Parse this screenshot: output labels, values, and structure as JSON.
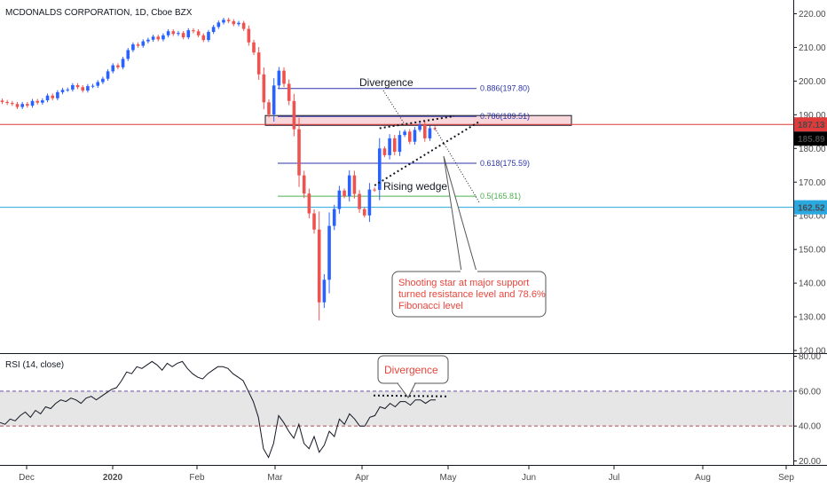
{
  "header": {
    "title": "MCDONALDS CORPORATION, 1D, Cboe BZX",
    "rsi_label": "RSI (14, close)"
  },
  "colors": {
    "up": "#2962ff",
    "down": "#ef5350",
    "resistance_line": "#e03a3a",
    "support_line": "#2aa8e0",
    "fib_line": "#2d35a8",
    "fib_05": "#4caf50",
    "zone_fill": "#f8d7da",
    "rsi_line": "#131722",
    "rsi_band": "#e6e6e6",
    "price_tag_red": "#e03a3a",
    "price_tag_black": "#000000",
    "price_tag_blue": "#2aa8e0"
  },
  "chart_data": [
    {
      "type": "candlestick",
      "title": "MCDONALDS CORPORATION, 1D, Cboe BZX",
      "xlabel": "",
      "ylabel": "",
      "ylim": [
        118,
        222
      ],
      "y_axis_side": "right",
      "grid": false,
      "x_tick_labels": [
        "Dec",
        "2020",
        "Feb",
        "Mar",
        "Apr",
        "May",
        "Jun",
        "Jul",
        "Aug",
        "Sep"
      ],
      "y_tick_labels": [
        "220.00",
        "210.00",
        "200.00",
        "190.00",
        "180.00",
        "170.00",
        "160.00",
        "150.00",
        "140.00",
        "130.00",
        "120.00"
      ],
      "y_ticks": [
        220,
        210,
        200,
        190,
        180,
        170,
        160,
        150,
        140,
        130,
        120
      ],
      "price_tags": [
        {
          "label": "187.13",
          "value": 187.13,
          "style": "red"
        },
        {
          "label": "185.89",
          "value": 185.89,
          "style": "black"
        },
        {
          "label": "162.52",
          "value": 162.52,
          "style": "blue"
        }
      ],
      "horizontal_lines": [
        {
          "value": 187.13,
          "style": "resistance_line"
        },
        {
          "value": 162.52,
          "style": "support_line"
        }
      ],
      "fib_levels": [
        {
          "label": "0.886(197.80)",
          "value": 197.8
        },
        {
          "label": "0.786(189.51)",
          "value": 189.51
        },
        {
          "label": "0.618(175.59)",
          "value": 175.59
        },
        {
          "label": "0.5(165.81)",
          "value": 165.81
        }
      ],
      "annotations": [
        "Divergence",
        "Rising wedge"
      ],
      "note": [
        "Shooting star at major support",
        "turned resistance level and 78.6%",
        "Fibonacci level"
      ],
      "candles_close": [
        193.8,
        193.5,
        193.2,
        192.3,
        193.2,
        192.7,
        194.1,
        193.6,
        194.3,
        195.7,
        194.9,
        196.7,
        197.4,
        197.5,
        198.8,
        198.2,
        197.2,
        198.5,
        198.6,
        199.7,
        200.7,
        202.9,
        204.7,
        204.1,
        206.6,
        209.2,
        210.9,
        210.5,
        211.8,
        212.3,
        213.2,
        212.4,
        213.6,
        214.8,
        214.0,
        214.3,
        213.0,
        215.1,
        214.8,
        213.6,
        212.2,
        214.6,
        216.1,
        217.4,
        218.2,
        217.8,
        216.9,
        217.3,
        215.5,
        211.5,
        208.5,
        202.0,
        193.7,
        190.1,
        198.7,
        203.1,
        199.2,
        194.1,
        185.7,
        172.0,
        166.6,
        160.7,
        155.9,
        134.3,
        141.0,
        157.0,
        162.0,
        167.5,
        165.8,
        172.0,
        166.5,
        162.0,
        160.1,
        167.8,
        167.7,
        180.0,
        178.0,
        183.0,
        179.0,
        184.0,
        185.0,
        182.0,
        185.5,
        187.0,
        183.0,
        186.0,
        185.9
      ]
    },
    {
      "type": "line",
      "title": "RSI (14, close)",
      "ylim": [
        18,
        82
      ],
      "y_ticks": [
        80,
        60,
        40,
        20
      ],
      "y_tick_labels": [
        "80.00",
        "60.00",
        "40.00",
        "20.00"
      ],
      "band": [
        40,
        60
      ],
      "annotations": [
        "Divergence"
      ],
      "series": [
        {
          "values": [
            42,
            41,
            44,
            43,
            46,
            48,
            45,
            49,
            47,
            51,
            50,
            53,
            55,
            54,
            56,
            55,
            53,
            56,
            57,
            55,
            57,
            59,
            61,
            62,
            66,
            71,
            70,
            74,
            73,
            75,
            77,
            75,
            72,
            76,
            74,
            76,
            77,
            73,
            70,
            68,
            67,
            70,
            72,
            74,
            74,
            73,
            70,
            68,
            66,
            60,
            54,
            45,
            27,
            22,
            30,
            46,
            42,
            37,
            33,
            41,
            30,
            27,
            34,
            25,
            29,
            37,
            34,
            44,
            41,
            47,
            44,
            40,
            40,
            45,
            46,
            51,
            50,
            53,
            51,
            54,
            54,
            52,
            55,
            55,
            53,
            55,
            55
          ]
        }
      ]
    }
  ]
}
